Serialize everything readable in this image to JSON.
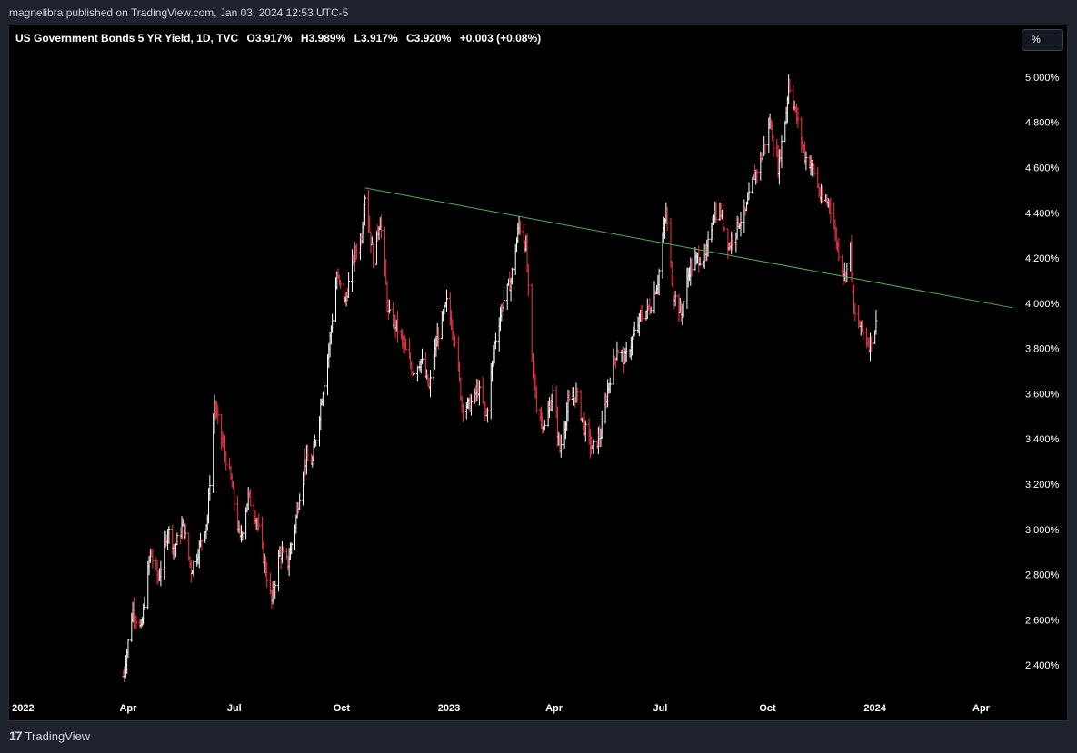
{
  "attribution": "magnelibra published on TradingView.com, Jan 03, 2024 12:53 UTC-5",
  "header": {
    "symbol": "US Government Bonds 5 YR Yield, 1D, TVC",
    "open": "O3.917%",
    "high": "H3.989%",
    "low": "L3.917%",
    "close": "C3.920%",
    "change": "+0.003 (+0.08%)"
  },
  "unit_button": "%",
  "footer": {
    "brand": "TradingView",
    "logo_icon": "tradingview-logo-icon"
  },
  "colors": {
    "up": "#ffffff",
    "down": "#f23645",
    "trendline": "#4caf50",
    "background": "#000000"
  },
  "chart_data": {
    "type": "line",
    "title": "US Government Bonds 5 YR Yield, 1D, TVC",
    "x_axis_ticks": [
      {
        "label": "2022",
        "date": "2022-01-01"
      },
      {
        "label": "Apr",
        "date": "2022-04-01"
      },
      {
        "label": "Jul",
        "date": "2022-07-01"
      },
      {
        "label": "Oct",
        "date": "2022-10-01"
      },
      {
        "label": "2023",
        "date": "2023-01-01"
      },
      {
        "label": "Apr",
        "date": "2023-04-01"
      },
      {
        "label": "Jul",
        "date": "2023-07-01"
      },
      {
        "label": "Oct",
        "date": "2023-10-01"
      },
      {
        "label": "2024",
        "date": "2024-01-01"
      },
      {
        "label": "Apr",
        "date": "2024-04-01"
      }
    ],
    "y_axis_ticks": [
      "2.400%",
      "2.600%",
      "2.800%",
      "3.000%",
      "3.200%",
      "3.400%",
      "3.600%",
      "3.800%",
      "4.000%",
      "4.200%",
      "4.400%",
      "4.600%",
      "4.800%",
      "5.000%"
    ],
    "ylim": [
      2.28,
      5.1
    ],
    "xlim": [
      "2021-12-20",
      "2024-05-01"
    ],
    "series": [
      {
        "values": [
          {
            "x": "2022-03-28",
            "y": 2.35
          },
          {
            "x": "2022-04-05",
            "y": 2.65
          },
          {
            "x": "2022-04-12",
            "y": 2.55
          },
          {
            "x": "2022-04-20",
            "y": 2.9
          },
          {
            "x": "2022-04-27",
            "y": 2.78
          },
          {
            "x": "2022-05-05",
            "y": 3.0
          },
          {
            "x": "2022-05-11",
            "y": 2.92
          },
          {
            "x": "2022-05-18",
            "y": 3.02
          },
          {
            "x": "2022-05-25",
            "y": 2.82
          },
          {
            "x": "2022-06-01",
            "y": 2.92
          },
          {
            "x": "2022-06-08",
            "y": 3.05
          },
          {
            "x": "2022-06-14",
            "y": 3.55
          },
          {
            "x": "2022-06-21",
            "y": 3.38
          },
          {
            "x": "2022-06-28",
            "y": 3.22
          },
          {
            "x": "2022-07-06",
            "y": 2.95
          },
          {
            "x": "2022-07-13",
            "y": 3.15
          },
          {
            "x": "2022-07-20",
            "y": 3.05
          },
          {
            "x": "2022-07-27",
            "y": 2.85
          },
          {
            "x": "2022-08-02",
            "y": 2.68
          },
          {
            "x": "2022-08-09",
            "y": 2.9
          },
          {
            "x": "2022-08-16",
            "y": 2.85
          },
          {
            "x": "2022-08-23",
            "y": 3.05
          },
          {
            "x": "2022-08-30",
            "y": 3.3
          },
          {
            "x": "2022-09-06",
            "y": 3.3
          },
          {
            "x": "2022-09-13",
            "y": 3.55
          },
          {
            "x": "2022-09-20",
            "y": 3.8
          },
          {
            "x": "2022-09-27",
            "y": 4.12
          },
          {
            "x": "2022-10-04",
            "y": 4.0
          },
          {
            "x": "2022-10-11",
            "y": 4.2
          },
          {
            "x": "2022-10-18",
            "y": 4.3
          },
          {
            "x": "2022-10-21",
            "y": 4.48
          },
          {
            "x": "2022-10-28",
            "y": 4.2
          },
          {
            "x": "2022-11-03",
            "y": 4.38
          },
          {
            "x": "2022-11-10",
            "y": 3.95
          },
          {
            "x": "2022-11-17",
            "y": 3.9
          },
          {
            "x": "2022-11-24",
            "y": 3.8
          },
          {
            "x": "2022-12-01",
            "y": 3.7
          },
          {
            "x": "2022-12-08",
            "y": 3.75
          },
          {
            "x": "2022-12-15",
            "y": 3.62
          },
          {
            "x": "2022-12-22",
            "y": 3.85
          },
          {
            "x": "2022-12-30",
            "y": 4.0
          },
          {
            "x": "2023-01-06",
            "y": 3.85
          },
          {
            "x": "2023-01-12",
            "y": 3.55
          },
          {
            "x": "2023-01-19",
            "y": 3.55
          },
          {
            "x": "2023-01-26",
            "y": 3.62
          },
          {
            "x": "2023-02-02",
            "y": 3.5
          },
          {
            "x": "2023-02-09",
            "y": 3.82
          },
          {
            "x": "2023-02-16",
            "y": 4.0
          },
          {
            "x": "2023-02-23",
            "y": 4.1
          },
          {
            "x": "2023-03-02",
            "y": 4.35
          },
          {
            "x": "2023-03-08",
            "y": 4.25
          },
          {
            "x": "2023-03-13",
            "y": 3.75
          },
          {
            "x": "2023-03-17",
            "y": 3.55
          },
          {
            "x": "2023-03-24",
            "y": 3.45
          },
          {
            "x": "2023-03-31",
            "y": 3.6
          },
          {
            "x": "2023-04-06",
            "y": 3.35
          },
          {
            "x": "2023-04-13",
            "y": 3.55
          },
          {
            "x": "2023-04-20",
            "y": 3.6
          },
          {
            "x": "2023-04-27",
            "y": 3.45
          },
          {
            "x": "2023-05-04",
            "y": 3.35
          },
          {
            "x": "2023-05-11",
            "y": 3.42
          },
          {
            "x": "2023-05-18",
            "y": 3.65
          },
          {
            "x": "2023-05-25",
            "y": 3.8
          },
          {
            "x": "2023-06-01",
            "y": 3.75
          },
          {
            "x": "2023-06-08",
            "y": 3.85
          },
          {
            "x": "2023-06-15",
            "y": 3.95
          },
          {
            "x": "2023-06-22",
            "y": 3.98
          },
          {
            "x": "2023-06-29",
            "y": 4.1
          },
          {
            "x": "2023-07-06",
            "y": 4.4
          },
          {
            "x": "2023-07-12",
            "y": 4.05
          },
          {
            "x": "2023-07-19",
            "y": 3.95
          },
          {
            "x": "2023-07-26",
            "y": 4.15
          },
          {
            "x": "2023-08-02",
            "y": 4.2
          },
          {
            "x": "2023-08-09",
            "y": 4.2
          },
          {
            "x": "2023-08-16",
            "y": 4.4
          },
          {
            "x": "2023-08-22",
            "y": 4.4
          },
          {
            "x": "2023-08-29",
            "y": 4.25
          },
          {
            "x": "2023-09-05",
            "y": 4.35
          },
          {
            "x": "2023-09-12",
            "y": 4.4
          },
          {
            "x": "2023-09-19",
            "y": 4.55
          },
          {
            "x": "2023-09-26",
            "y": 4.65
          },
          {
            "x": "2023-10-03",
            "y": 4.8
          },
          {
            "x": "2023-10-10",
            "y": 4.6
          },
          {
            "x": "2023-10-17",
            "y": 4.85
          },
          {
            "x": "2023-10-19",
            "y": 4.98
          },
          {
            "x": "2023-10-26",
            "y": 4.82
          },
          {
            "x": "2023-11-02",
            "y": 4.65
          },
          {
            "x": "2023-11-09",
            "y": 4.6
          },
          {
            "x": "2023-11-16",
            "y": 4.45
          },
          {
            "x": "2023-11-23",
            "y": 4.45
          },
          {
            "x": "2023-11-30",
            "y": 4.25
          },
          {
            "x": "2023-12-06",
            "y": 4.12
          },
          {
            "x": "2023-12-11",
            "y": 4.25
          },
          {
            "x": "2023-12-14",
            "y": 3.95
          },
          {
            "x": "2023-12-21",
            "y": 3.88
          },
          {
            "x": "2023-12-27",
            "y": 3.82
          },
          {
            "x": "2024-01-03",
            "y": 3.92
          }
        ]
      }
    ],
    "trendline": {
      "start": {
        "x": "2022-10-21",
        "y": 4.51
      },
      "end": {
        "x": "2024-04-28",
        "y": 3.98
      }
    },
    "grid": false,
    "legend": "none"
  }
}
